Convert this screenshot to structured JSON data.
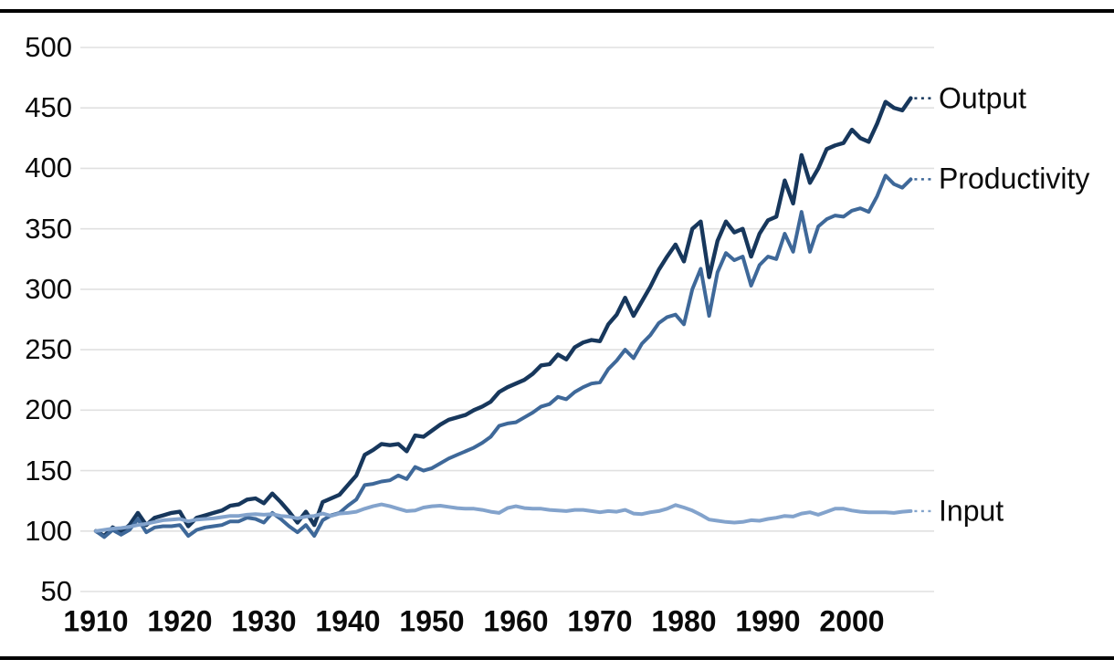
{
  "chart_data": {
    "type": "line",
    "title": "",
    "xlabel": "",
    "ylabel": "",
    "ylim": [
      50,
      500
    ],
    "yticks": [
      50,
      100,
      150,
      200,
      250,
      300,
      350,
      400,
      450,
      500
    ],
    "xticks": [
      1910,
      1920,
      1930,
      1940,
      1950,
      1960,
      1970,
      1980,
      1990,
      2000
    ],
    "grid": "horizontal",
    "grid_color": "#e0e0e0",
    "legend_position": "end-of-line-labels",
    "years": [
      1910,
      1911,
      1912,
      1913,
      1914,
      1915,
      1916,
      1917,
      1918,
      1919,
      1920,
      1921,
      1922,
      1923,
      1924,
      1925,
      1926,
      1927,
      1928,
      1929,
      1930,
      1931,
      1932,
      1933,
      1934,
      1935,
      1936,
      1937,
      1938,
      1939,
      1940,
      1941,
      1942,
      1943,
      1944,
      1945,
      1946,
      1947,
      1948,
      1949,
      1950,
      1951,
      1952,
      1953,
      1954,
      1955,
      1956,
      1957,
      1958,
      1959,
      1960,
      1961,
      1962,
      1963,
      1964,
      1965,
      1966,
      1967,
      1968,
      1969,
      1970,
      1971,
      1972,
      1973,
      1974,
      1975,
      1976,
      1977,
      1978,
      1979,
      1980,
      1981,
      1982,
      1983,
      1984,
      1985,
      1986,
      1987,
      1988,
      1989,
      1990,
      1991,
      1992,
      1993,
      1994,
      1995,
      1996,
      1997,
      1998,
      1999,
      2000,
      2001,
      2002,
      2003,
      2004,
      2005,
      2006,
      2007
    ],
    "series": [
      {
        "name": "Output",
        "color": "#17375c",
        "values": [
          100,
          96,
          103,
          99,
          105,
          115,
          105,
          111,
          113,
          115,
          116,
          104,
          111,
          113,
          115,
          117,
          121,
          122,
          126,
          127,
          123,
          131,
          124,
          116,
          107,
          116,
          105,
          124,
          127,
          130,
          138,
          146,
          163,
          167,
          172,
          171,
          172,
          166,
          179,
          178,
          183,
          188,
          192,
          194,
          196,
          200,
          203,
          207,
          215,
          219,
          222,
          225,
          230,
          237,
          238,
          246,
          242,
          252,
          256,
          258,
          257,
          271,
          279,
          293,
          278,
          290,
          302,
          316,
          327,
          337,
          323,
          350,
          356,
          310,
          340,
          356,
          347,
          350,
          327,
          346,
          357,
          360,
          390,
          371,
          411,
          388,
          400,
          416,
          419,
          421,
          432,
          425,
          422,
          437,
          455,
          450,
          448,
          458
        ]
      },
      {
        "name": "Productivity",
        "color": "#3e6899",
        "values": [
          100,
          95,
          101,
          97,
          101,
          110,
          99,
          103,
          104,
          104,
          105,
          96,
          101,
          103,
          104,
          105,
          108,
          108,
          111,
          110,
          107,
          115,
          110,
          104,
          99,
          105,
          96,
          109,
          113,
          115,
          121,
          126,
          138,
          139,
          141,
          142,
          146,
          143,
          153,
          150,
          152,
          156,
          160,
          163,
          166,
          169,
          173,
          178,
          187,
          189,
          190,
          194,
          198,
          203,
          205,
          211,
          209,
          215,
          219,
          222,
          223,
          234,
          241,
          250,
          243,
          255,
          262,
          272,
          277,
          279,
          271,
          300,
          317,
          278,
          314,
          330,
          324,
          327,
          303,
          320,
          327,
          325,
          346,
          331,
          364,
          331,
          352,
          358,
          361,
          360,
          365,
          367,
          364,
          377,
          394,
          387,
          384,
          391
        ]
      },
      {
        "name": "Input",
        "color": "#83a3cc",
        "values": [
          100,
          101,
          102,
          102.5,
          103.5,
          105,
          106,
          107.5,
          109,
          109.5,
          110,
          108,
          109.5,
          110,
          110.5,
          111.5,
          112.5,
          112.5,
          113.5,
          114,
          113.5,
          114,
          112.5,
          112,
          110.5,
          112,
          112.5,
          114.5,
          112.5,
          114.5,
          115,
          116,
          118.5,
          120.5,
          122,
          120.5,
          118.5,
          116.5,
          117,
          119.5,
          120.5,
          121,
          120,
          119,
          118.5,
          118.5,
          117.5,
          116,
          115,
          119,
          120.5,
          119,
          118.5,
          118.5,
          117.5,
          117,
          116.5,
          117.5,
          117.5,
          116.5,
          115.5,
          116.5,
          116,
          117.5,
          114.5,
          114,
          115.5,
          116.5,
          118.5,
          121.5,
          119.5,
          117,
          113.5,
          109.5,
          108.5,
          107.5,
          107,
          107.5,
          109,
          108.5,
          110,
          111,
          112.5,
          112,
          114.5,
          115.5,
          113.5,
          116,
          118.5,
          118.5,
          117,
          116,
          115.5,
          115.5,
          115.5,
          115,
          116,
          116.5
        ]
      }
    ]
  }
}
